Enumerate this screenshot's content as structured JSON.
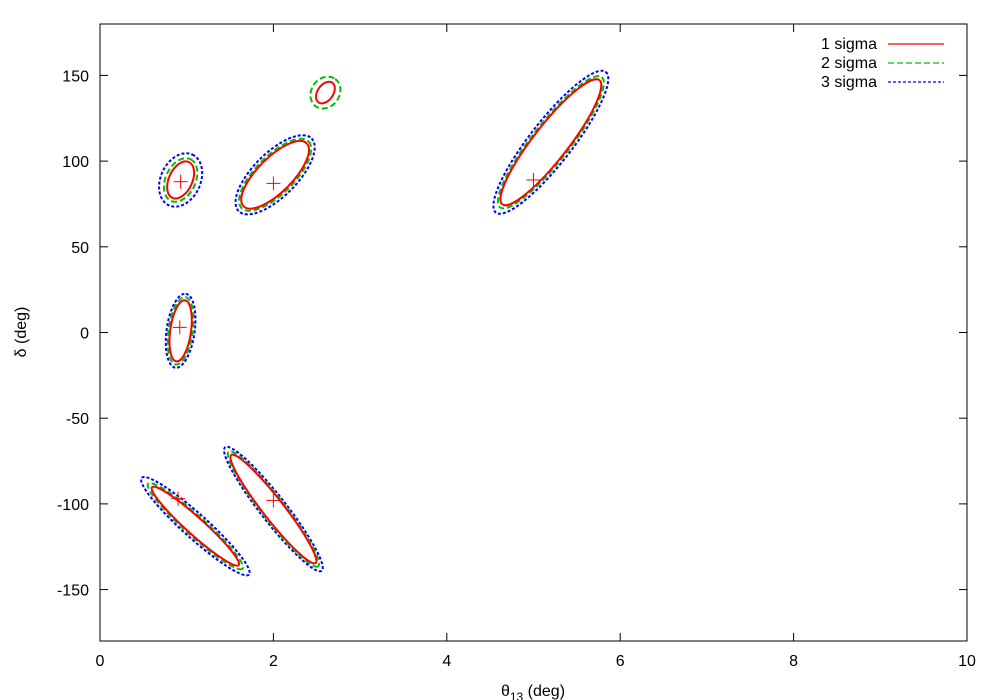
{
  "chart_data": {
    "type": "contour",
    "xlabel_main": "θ",
    "xlabel_sub": "13",
    "xlabel_unit": " (deg)",
    "ylabel": "δ (deg)",
    "xlim": [
      0,
      10
    ],
    "ylim": [
      -180,
      180
    ],
    "xticks": [
      0,
      2,
      4,
      6,
      8,
      10
    ],
    "yticks": [
      -150,
      -100,
      -50,
      0,
      50,
      100,
      150
    ],
    "grid": false,
    "legend_position": "top-right",
    "series": [
      {
        "name": "1 sigma",
        "color": "#ff0000",
        "dash": "solid"
      },
      {
        "name": "2 sigma",
        "color": "#00c000",
        "dash": "dashed"
      },
      {
        "name": "3 sigma",
        "color": "#0000ff",
        "dash": "dotted"
      }
    ],
    "best_fit_points": [
      {
        "x": 0.93,
        "y": 88
      },
      {
        "x": 2.0,
        "y": 87
      },
      {
        "x": 5.0,
        "y": 89
      },
      {
        "x": 0.92,
        "y": 3
      },
      {
        "x": 0.9,
        "y": -97
      },
      {
        "x": 2.0,
        "y": -98
      }
    ],
    "regions": [
      {
        "cx": 0.93,
        "cy": 89,
        "a": 0.135,
        "b": 11.5,
        "angle": 65,
        "scales": [
          1.0,
          1.28,
          1.7
        ]
      },
      {
        "cx": 2.02,
        "cy": 92,
        "a": 0.2,
        "b": 26,
        "angle": 45,
        "scales": [
          1.0,
          1.1,
          1.26
        ]
      },
      {
        "cx": 5.2,
        "cy": 111,
        "a": 0.2,
        "b": 46,
        "angle": 52,
        "scales": [
          1.0,
          1.08,
          1.22
        ]
      },
      {
        "cx": 0.93,
        "cy": 1,
        "a": 0.12,
        "b": 18,
        "angle": 82,
        "scales": [
          1.0,
          1.17,
          1.35
        ]
      },
      {
        "cx": 1.1,
        "cy": -113,
        "a": 0.1,
        "b": 34,
        "angle": -42,
        "scales": [
          1.0,
          1.15,
          1.4
        ]
      },
      {
        "cx": 2.0,
        "cy": -103,
        "a": 0.12,
        "b": 40,
        "angle": -52,
        "scales": [
          1.0,
          1.1,
          1.24
        ]
      }
    ],
    "islands": [
      {
        "cx": 2.6,
        "cy": 140,
        "a": 0.09,
        "b": 7,
        "angle": 55,
        "scales": [
          1.0,
          1.8
        ],
        "levels": [
          1,
          2
        ]
      }
    ]
  }
}
